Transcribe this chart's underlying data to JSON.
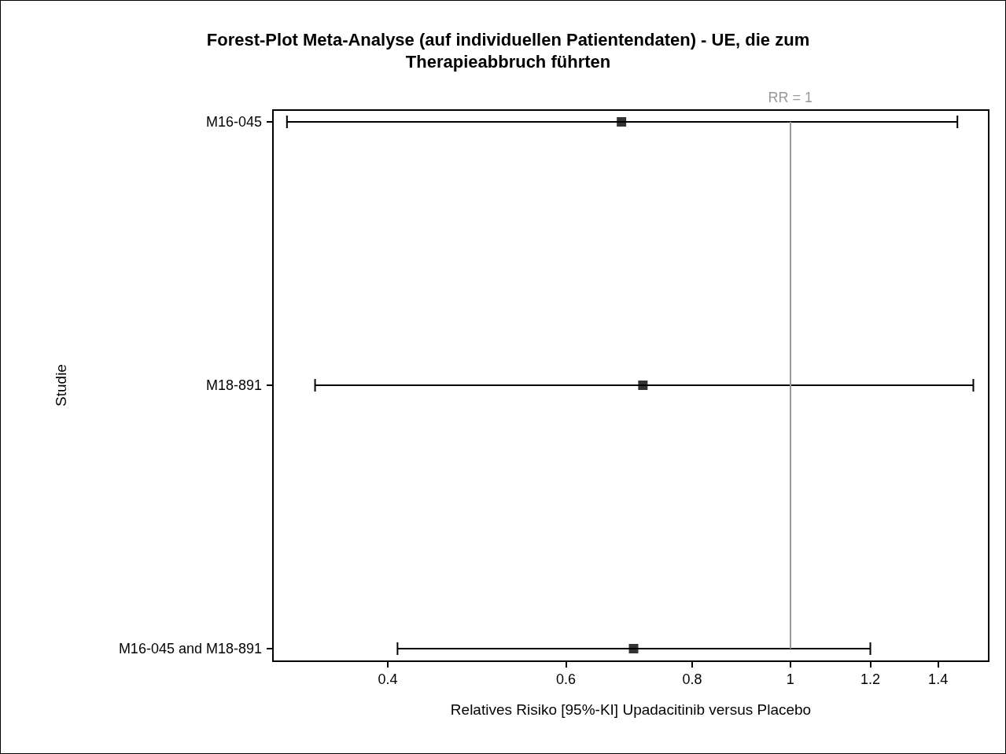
{
  "chart_data": {
    "type": "scatter",
    "title": "Forest-Plot Meta-Analyse (auf individuellen Patientendaten) - UE, die zum\nTherapieabbruch führten",
    "xlabel": "Relatives Risiko [95%-KI] Upadacitinib versus Placebo",
    "ylabel": "Studie",
    "orientation": "horizontal",
    "log": "x",
    "categories": [
      "M16-045",
      "M18-891",
      "M16-045 and M18-891"
    ],
    "series": [
      {
        "color": "#000000",
        "values": [
          0.681,
          0.715,
          0.7
        ],
        "errors": [
          [
            0.318,
            1.463
          ],
          [
            0.339,
            1.517
          ],
          [
            0.409,
            1.2
          ]
        ]
      }
    ],
    "xlim": [
      0.308,
      1.571
    ],
    "xticks": [
      0.4,
      0.6,
      0.8,
      1,
      1.2,
      1.4
    ],
    "ref_lines": [
      {
        "axis": "x",
        "value": 1,
        "label": "RR = 1",
        "color": "#999999"
      }
    ],
    "marker": "square",
    "grid": false
  }
}
